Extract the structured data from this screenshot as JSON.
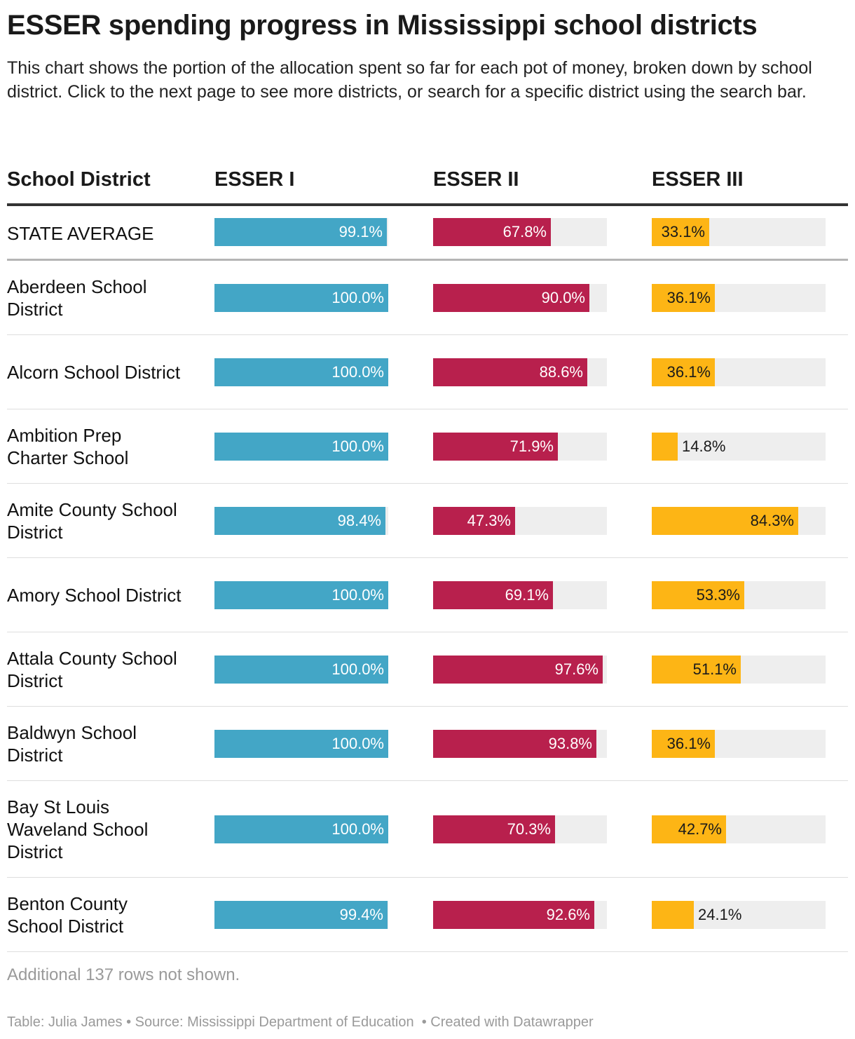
{
  "title": "ESSER spending progress in Mississippi school districts",
  "subtitle": "This chart shows the portion of the allocation spent so far for each pot of money, broken down by school district. Click to the next page to see more districts, or search for a specific district using the search bar.",
  "colors": {
    "esser1": "#43a6c6",
    "esser2": "#b8204d",
    "esser3": "#fdb515",
    "track": "#eeeeee"
  },
  "chart_data": {
    "type": "table",
    "columns": [
      "School District",
      "ESSER I",
      "ESSER II",
      "ESSER III"
    ],
    "value_max": 100,
    "rows": [
      {
        "district": "STATE AVERAGE",
        "values": [
          99.1,
          67.8,
          33.1
        ],
        "labels": [
          "99.1%",
          "67.8%",
          "33.1%"
        ]
      },
      {
        "district": "Aberdeen School District",
        "values": [
          100.0,
          90.0,
          36.1
        ],
        "labels": [
          "100.0%",
          "90.0%",
          "36.1%"
        ]
      },
      {
        "district": "Alcorn School District",
        "values": [
          100.0,
          88.6,
          36.1
        ],
        "labels": [
          "100.0%",
          "88.6%",
          "36.1%"
        ]
      },
      {
        "district": "Ambition Prep Charter School",
        "values": [
          100.0,
          71.9,
          14.8
        ],
        "labels": [
          "100.0%",
          "71.9%",
          "14.8%"
        ]
      },
      {
        "district": "Amite County School District",
        "values": [
          98.4,
          47.3,
          84.3
        ],
        "labels": [
          "98.4%",
          "47.3%",
          "84.3%"
        ]
      },
      {
        "district": "Amory School District",
        "values": [
          100.0,
          69.1,
          53.3
        ],
        "labels": [
          "100.0%",
          "69.1%",
          "53.3%"
        ]
      },
      {
        "district": "Attala County School District",
        "values": [
          100.0,
          97.6,
          51.1
        ],
        "labels": [
          "100.0%",
          "97.6%",
          "51.1%"
        ]
      },
      {
        "district": "Baldwyn School District",
        "values": [
          100.0,
          93.8,
          36.1
        ],
        "labels": [
          "100.0%",
          "93.8%",
          "36.1%"
        ]
      },
      {
        "district": "Bay St Louis Waveland School District",
        "values": [
          100.0,
          70.3,
          42.7
        ],
        "labels": [
          "100.0%",
          "70.3%",
          "42.7%"
        ]
      },
      {
        "district": "Benton County School District",
        "values": [
          99.4,
          92.6,
          24.1
        ],
        "labels": [
          "99.4%",
          "92.6%",
          "24.1%"
        ]
      }
    ]
  },
  "notes": "Additional 137 rows not shown.",
  "footer": {
    "table_by": "Table: Julia James",
    "source": "Source: Mississippi Department of Education",
    "created": "Created with Datawrapper"
  }
}
